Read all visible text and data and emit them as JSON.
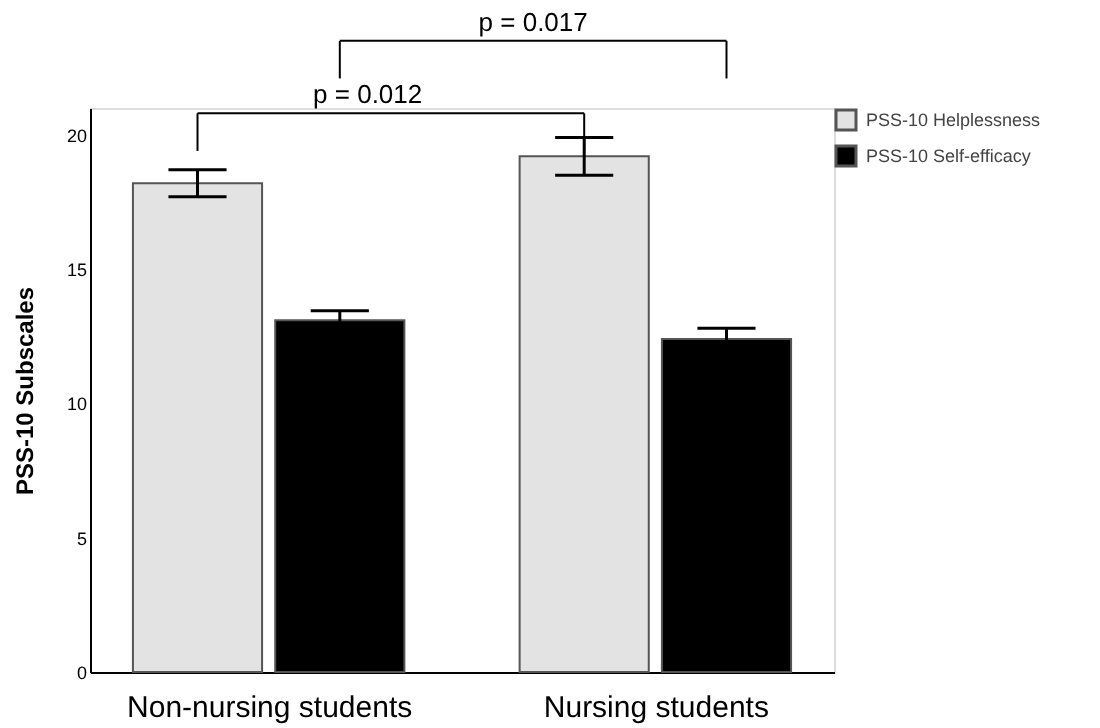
{
  "chart_data": {
    "type": "bar",
    "ylabel": "PSS-10 Subscales",
    "categories": [
      "Non-nursing students",
      "Nursing students"
    ],
    "series": [
      {
        "name": "PSS-10 Helplessness",
        "color": "#e3e3e3",
        "values": [
          18.2,
          19.2
        ],
        "errors": [
          0.5,
          0.7
        ]
      },
      {
        "name": "PSS-10 Self-efficacy",
        "color": "#000000",
        "values": [
          13.1,
          12.4
        ],
        "errors": [
          0.35,
          0.4
        ]
      }
    ],
    "ylim": [
      0,
      21
    ],
    "yticks": [
      0,
      5,
      10,
      15,
      20
    ],
    "grid": false,
    "legend": "top right",
    "annotations": [
      "p = 0.012",
      "p = 0.017"
    ]
  }
}
